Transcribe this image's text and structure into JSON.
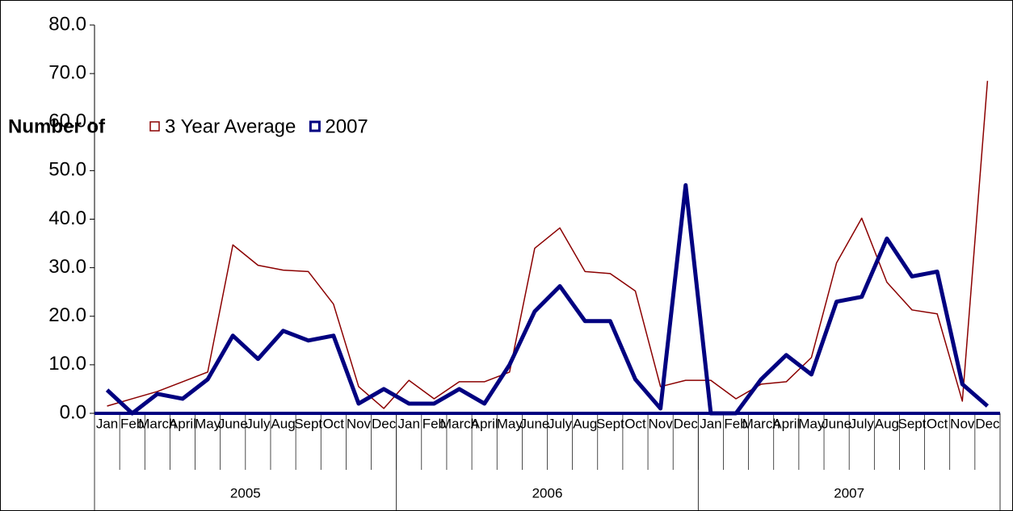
{
  "chart_data": {
    "type": "line",
    "y_axis_title": "Number of",
    "categories": [
      "Jan",
      "Feb",
      "March",
      "April",
      "May",
      "June",
      "July",
      "Aug",
      "Sept",
      "Oct",
      "Nov",
      "Dec",
      "Jan",
      "Feb",
      "March",
      "April",
      "May",
      "June",
      "July",
      "Aug",
      "Sept",
      "Oct",
      "Nov",
      "Dec",
      "Jan",
      "Feb",
      "March",
      "April",
      "May",
      "June",
      "July",
      "Aug",
      "Sept",
      "Oct",
      "Nov",
      "Dec"
    ],
    "year_groups": [
      "2005",
      "2006",
      "2007"
    ],
    "series": [
      {
        "name": "3 Year Average",
        "color": "#8b0000",
        "width": 1.5,
        "values": [
          1.5,
          3,
          4.5,
          6.5,
          8.5,
          34.7,
          30.5,
          29.5,
          29.2,
          22.5,
          5.5,
          1,
          6.8,
          3,
          6.5,
          6.5,
          8.5,
          34,
          38.2,
          29.2,
          28.8,
          25.2,
          5.5,
          6.8,
          6.8,
          3,
          6,
          6.5,
          11.5,
          31,
          40.2,
          27,
          21.3,
          20.5,
          2.5,
          68.5
        ]
      },
      {
        "name": "2007",
        "color": "#000080",
        "width": 5,
        "values": [
          4.8,
          0,
          4,
          3,
          7,
          16,
          11.2,
          17,
          15,
          16,
          2,
          5,
          2,
          2,
          5,
          2,
          10,
          21,
          26.2,
          19,
          19,
          7,
          1,
          47,
          0,
          0,
          7,
          12,
          8,
          23,
          24,
          36,
          28.2,
          29.2,
          6,
          1.5
        ]
      }
    ],
    "ylim": [
      0,
      80
    ],
    "yticks": [
      {
        "value": 0,
        "label": "0.0"
      },
      {
        "value": 10,
        "label": "10.0"
      },
      {
        "value": 20,
        "label": "20.0"
      },
      {
        "value": 30,
        "label": "30.0"
      },
      {
        "value": 40,
        "label": "40.0"
      },
      {
        "value": 50,
        "label": "50.0"
      },
      {
        "value": 60,
        "label": "60.0"
      },
      {
        "value": 70,
        "label": "70.0"
      },
      {
        "value": 80,
        "label": "80.0"
      }
    ]
  }
}
